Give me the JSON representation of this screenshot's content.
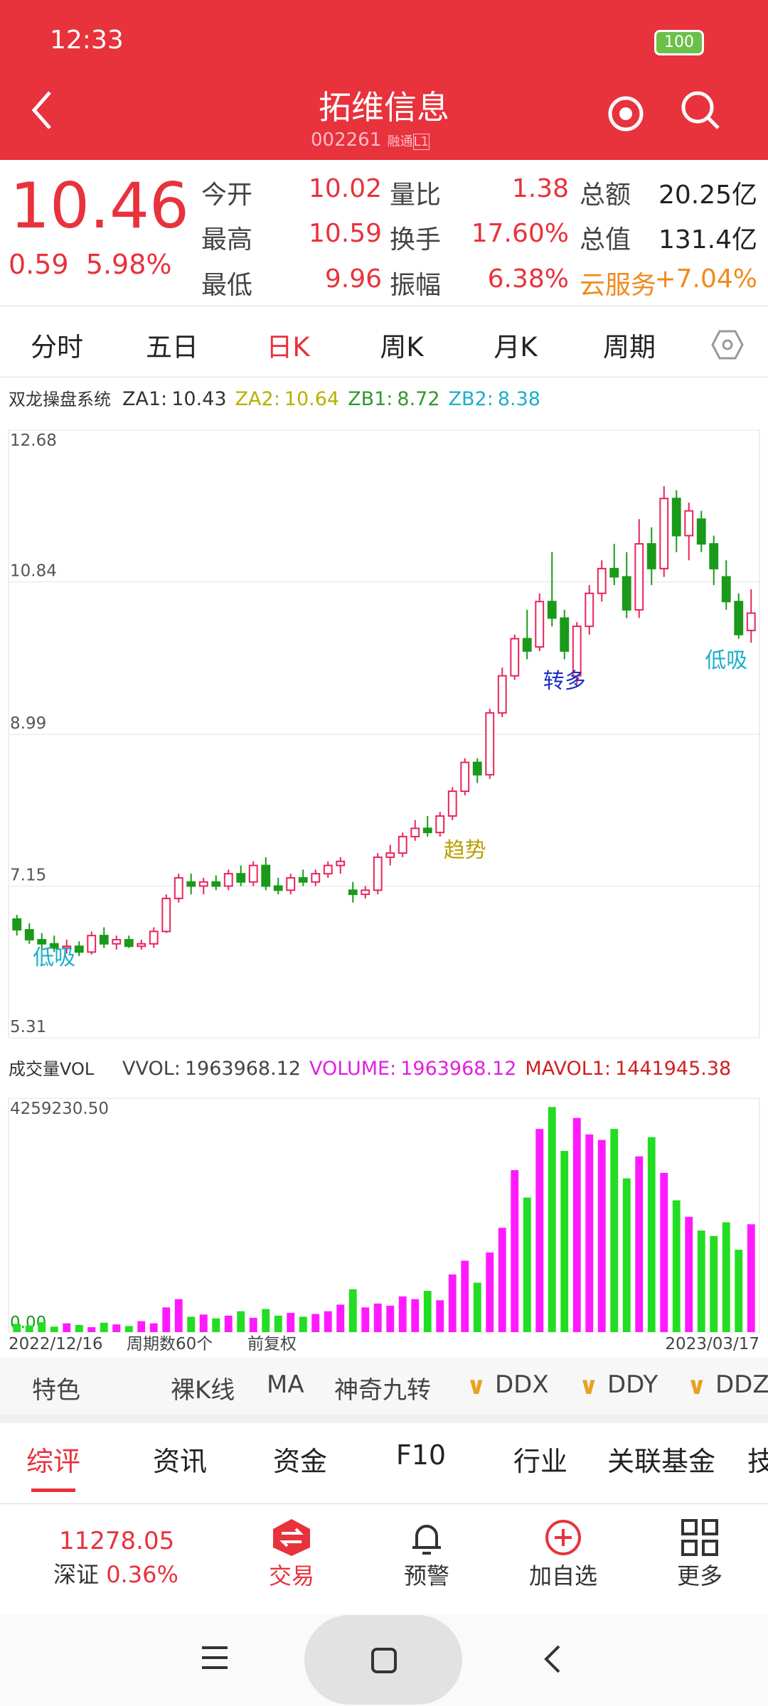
{
  "status_bar": {
    "time": "12:33",
    "battery": "100"
  },
  "header": {
    "title": "拓维信息",
    "code": "002261",
    "tags": [
      "融",
      "通",
      "L1"
    ]
  },
  "quote": {
    "price": "10.46",
    "change": "0.59",
    "change_pct": "5.98%",
    "fields": [
      {
        "label": "今开",
        "value": "10.02"
      },
      {
        "label": "量比",
        "value": "1.38"
      },
      {
        "label": "总额",
        "value": "20.25亿"
      },
      {
        "label": "最高",
        "value": "10.59"
      },
      {
        "label": "换手",
        "value": "17.60%"
      },
      {
        "label": "总值",
        "value": "131.4亿"
      },
      {
        "label": "最低",
        "value": "9.96"
      },
      {
        "label": "振幅",
        "value": "6.38%"
      },
      {
        "label": "云服务",
        "value": "+7.04%"
      }
    ]
  },
  "tabs": [
    "分时",
    "五日",
    "日K",
    "周K",
    "月K",
    "周期"
  ],
  "indicator": {
    "name": "双龙操盘系统",
    "items": [
      {
        "label": "ZA1:",
        "value": "10.43",
        "color": "#333333"
      },
      {
        "label": "ZA2:",
        "value": "10.64",
        "color": "#b8b000"
      },
      {
        "label": "ZB1:",
        "value": "8.72",
        "color": "#2e9a2e"
      },
      {
        "label": "ZB2:",
        "value": "8.38",
        "color": "#1ab0c8"
      }
    ]
  },
  "volume_header": {
    "name": "成交量VOL",
    "items": [
      {
        "label": "VVOL:",
        "value": "1963968.12",
        "color": "#444444"
      },
      {
        "label": "VOLUME:",
        "value": "1963968.12",
        "color": "#e020e0"
      },
      {
        "label": "MAVOL1:",
        "value": "1441945.38",
        "color": "#d02020"
      }
    ]
  },
  "chart_data": {
    "type": "candlestick",
    "ylim": [
      5.31,
      12.68
    ],
    "yticks": [
      5.31,
      7.15,
      8.99,
      10.84,
      12.68
    ],
    "grid": true,
    "up_color": "#e8245a",
    "down_color": "#1a9a1a",
    "candles": [
      [
        6.75,
        6.8,
        6.55,
        6.62
      ],
      [
        6.62,
        6.7,
        6.45,
        6.5
      ],
      [
        6.5,
        6.58,
        6.38,
        6.45
      ],
      [
        6.45,
        6.55,
        6.35,
        6.4
      ],
      [
        6.4,
        6.5,
        6.33,
        6.42
      ],
      [
        6.42,
        6.48,
        6.3,
        6.35
      ],
      [
        6.35,
        6.6,
        6.32,
        6.55
      ],
      [
        6.55,
        6.65,
        6.4,
        6.45
      ],
      [
        6.45,
        6.55,
        6.38,
        6.5
      ],
      [
        6.5,
        6.55,
        6.4,
        6.42
      ],
      [
        6.42,
        6.5,
        6.38,
        6.45
      ],
      [
        6.45,
        6.65,
        6.4,
        6.6
      ],
      [
        6.6,
        7.05,
        6.58,
        7.0
      ],
      [
        7.0,
        7.3,
        6.95,
        7.25
      ],
      [
        7.2,
        7.3,
        7.05,
        7.15
      ],
      [
        7.15,
        7.25,
        7.05,
        7.2
      ],
      [
        7.2,
        7.28,
        7.1,
        7.15
      ],
      [
        7.15,
        7.35,
        7.1,
        7.3
      ],
      [
        7.3,
        7.4,
        7.15,
        7.2
      ],
      [
        7.2,
        7.45,
        7.15,
        7.4
      ],
      [
        7.4,
        7.5,
        7.1,
        7.15
      ],
      [
        7.15,
        7.25,
        7.05,
        7.1
      ],
      [
        7.1,
        7.3,
        7.05,
        7.25
      ],
      [
        7.25,
        7.35,
        7.15,
        7.2
      ],
      [
        7.2,
        7.35,
        7.15,
        7.3
      ],
      [
        7.3,
        7.45,
        7.25,
        7.4
      ],
      [
        7.4,
        7.5,
        7.3,
        7.45
      ],
      [
        7.1,
        7.2,
        6.95,
        7.05
      ],
      [
        7.05,
        7.15,
        7.0,
        7.1
      ],
      [
        7.1,
        7.55,
        7.05,
        7.5
      ],
      [
        7.5,
        7.65,
        7.4,
        7.55
      ],
      [
        7.55,
        7.8,
        7.5,
        7.75
      ],
      [
        7.75,
        7.95,
        7.7,
        7.85
      ],
      [
        7.85,
        8.0,
        7.75,
        7.8
      ],
      [
        7.8,
        8.05,
        7.75,
        8.0
      ],
      [
        8.0,
        8.35,
        7.95,
        8.3
      ],
      [
        8.3,
        8.7,
        8.25,
        8.65
      ],
      [
        8.65,
        8.7,
        8.4,
        8.5
      ],
      [
        8.5,
        9.3,
        8.45,
        9.25
      ],
      [
        9.25,
        9.8,
        9.2,
        9.7
      ],
      [
        9.7,
        10.2,
        9.65,
        10.15
      ],
      [
        10.15,
        10.5,
        9.9,
        10.0
      ],
      [
        10.05,
        10.7,
        10.0,
        10.6
      ],
      [
        10.6,
        11.2,
        10.3,
        10.4
      ],
      [
        10.4,
        10.5,
        9.9,
        10.0
      ],
      [
        9.7,
        10.35,
        9.6,
        10.3
      ],
      [
        10.3,
        10.8,
        10.2,
        10.7
      ],
      [
        10.7,
        11.1,
        10.6,
        11.0
      ],
      [
        11.0,
        11.3,
        10.8,
        10.9
      ],
      [
        10.9,
        11.2,
        10.4,
        10.5
      ],
      [
        10.5,
        11.6,
        10.4,
        11.3
      ],
      [
        11.3,
        11.5,
        10.8,
        11.0
      ],
      [
        11.0,
        12.0,
        10.9,
        11.85
      ],
      [
        11.85,
        11.95,
        11.2,
        11.4
      ],
      [
        11.4,
        11.8,
        11.1,
        11.7
      ],
      [
        11.6,
        11.7,
        11.2,
        11.3
      ],
      [
        11.3,
        11.4,
        10.8,
        11.0
      ],
      [
        10.9,
        11.1,
        10.5,
        10.6
      ],
      [
        10.6,
        10.7,
        10.15,
        10.2
      ],
      [
        10.25,
        10.75,
        10.1,
        10.46
      ]
    ],
    "annotations": [
      "低吸",
      "趋势",
      "转多",
      "低吸"
    ],
    "volume": {
      "ylim": [
        0,
        4259230.5
      ],
      "yticks": [
        {
          "value": 0,
          "label": "0.00"
        },
        {
          "value": 4259230.5,
          "label": "4259230.50"
        }
      ],
      "values": [
        150000,
        120000,
        180000,
        100000,
        160000,
        130000,
        90000,
        170000,
        140000,
        110000,
        200000,
        160000,
        450000,
        600000,
        280000,
        320000,
        250000,
        300000,
        380000,
        260000,
        420000,
        300000,
        350000,
        280000,
        330000,
        380000,
        500000,
        780000,
        450000,
        520000,
        480000,
        650000,
        600000,
        750000,
        580000,
        1050000,
        1300000,
        900000,
        1450000,
        1900000,
        2950000,
        2450000,
        3700000,
        4100000,
        3300000,
        3900000,
        3600000,
        3500000,
        3700000,
        2800000,
        3200000,
        3550000,
        2900000,
        2400000,
        2100000,
        1850000,
        1750000,
        2000000,
        1500000,
        1963968.12
      ]
    },
    "x_start": "2022/12/16",
    "x_end": "2023/03/17",
    "period": "周期数60个",
    "adjust": "前复权"
  },
  "tools": [
    "特色",
    "裸K线",
    "MA",
    "神奇九转",
    "DDX",
    "DDY",
    "DDZ"
  ],
  "bottom_tabs": [
    "综评",
    "资讯",
    "资金",
    "F10",
    "行业",
    "关联基金",
    "技"
  ],
  "footer": {
    "index_value": "11278.05",
    "index_name": "深证",
    "index_pct": "0.36%",
    "actions": [
      "交易",
      "预警",
      "加自选",
      "更多"
    ]
  }
}
